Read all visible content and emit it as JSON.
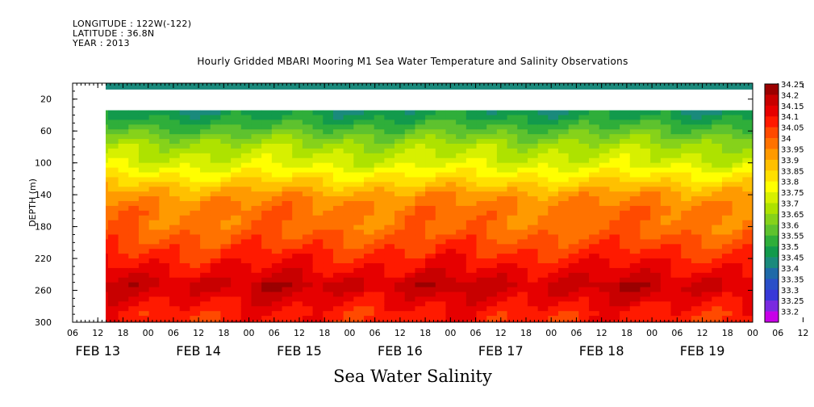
{
  "header": {
    "longitude": "LONGITUDE : 122W(-122)",
    "latitude": "LATITUDE : 36.8N",
    "year": "YEAR : 2013",
    "title": "Hourly Gridded MBARI Mooring M1 Sea Water Temperature and Salinity Observations"
  },
  "footer": {
    "variable_name": "Sea Water Salinity"
  },
  "chart_data": {
    "type": "heatmap",
    "title": "Hourly Gridded MBARI Mooring M1 Sea Water Temperature and Salinity Observations",
    "xlabel": "",
    "ylabel": "DEPTH (m)",
    "variable": "Sea Water Salinity",
    "y_axis": {
      "ticks": [
        20,
        60,
        100,
        140,
        180,
        220,
        260,
        300
      ],
      "range": [
        0,
        300
      ],
      "inverted": true
    },
    "x_axis": {
      "hour_ticks": [
        "06",
        "12",
        "18",
        "00",
        "06",
        "12",
        "18",
        "00",
        "06",
        "12",
        "18",
        "00",
        "06",
        "12",
        "18",
        "00",
        "06",
        "12",
        "18",
        "00",
        "06",
        "12",
        "18",
        "00",
        "06",
        "12",
        "18",
        "00",
        "06",
        "12",
        "18",
        "00"
      ],
      "start": "2013-02-13 06:00",
      "end": "2013-02-20 00:00",
      "day_labels": [
        "FEB 13",
        "FEB 14",
        "FEB 15",
        "FEB 16",
        "FEB 17",
        "FEB 18",
        "FEB 19"
      ]
    },
    "data_start": "2013-02-13 12:00",
    "colorbar": {
      "levels": [
        "34.25",
        "34.2",
        "34.15",
        "34.1",
        "34.05",
        "34",
        "33.95",
        "33.9",
        "33.85",
        "33.8",
        "33.75",
        "33.7",
        "33.65",
        "33.6",
        "33.55",
        "33.5",
        "33.45",
        "33.4",
        "33.35",
        "33.3",
        "33.25",
        "33.2"
      ],
      "colors": [
        "#9b0000",
        "#c80000",
        "#e60000",
        "#ff1a00",
        "#ff4a00",
        "#ff7200",
        "#ff9a00",
        "#ffc000",
        "#ffe000",
        "#ffff00",
        "#d7f000",
        "#aee200",
        "#86d21a",
        "#5ec22e",
        "#2fae3a",
        "#129a4c",
        "#1a8a7c",
        "#1f6aa8",
        "#2a4fc8",
        "#3838d8",
        "#7a2ae0",
        "#c800e8"
      ]
    },
    "depth_profile": [
      {
        "depth": 10,
        "value": 33.45
      },
      {
        "depth": 40,
        "value": 33.5
      },
      {
        "depth": 60,
        "value": 33.6
      },
      {
        "depth": 80,
        "value": 33.7
      },
      {
        "depth": 100,
        "value": 33.75
      },
      {
        "depth": 120,
        "value": 33.85
      },
      {
        "depth": 140,
        "value": 33.95
      },
      {
        "depth": 160,
        "value": 34.0
      },
      {
        "depth": 180,
        "value": 34.0
      },
      {
        "depth": 200,
        "value": 34.05
      },
      {
        "depth": 220,
        "value": 34.1
      },
      {
        "depth": 240,
        "value": 34.15
      },
      {
        "depth": 255,
        "value": 34.2
      },
      {
        "depth": 270,
        "value": 34.15
      },
      {
        "depth": 290,
        "value": 34.1
      }
    ]
  }
}
